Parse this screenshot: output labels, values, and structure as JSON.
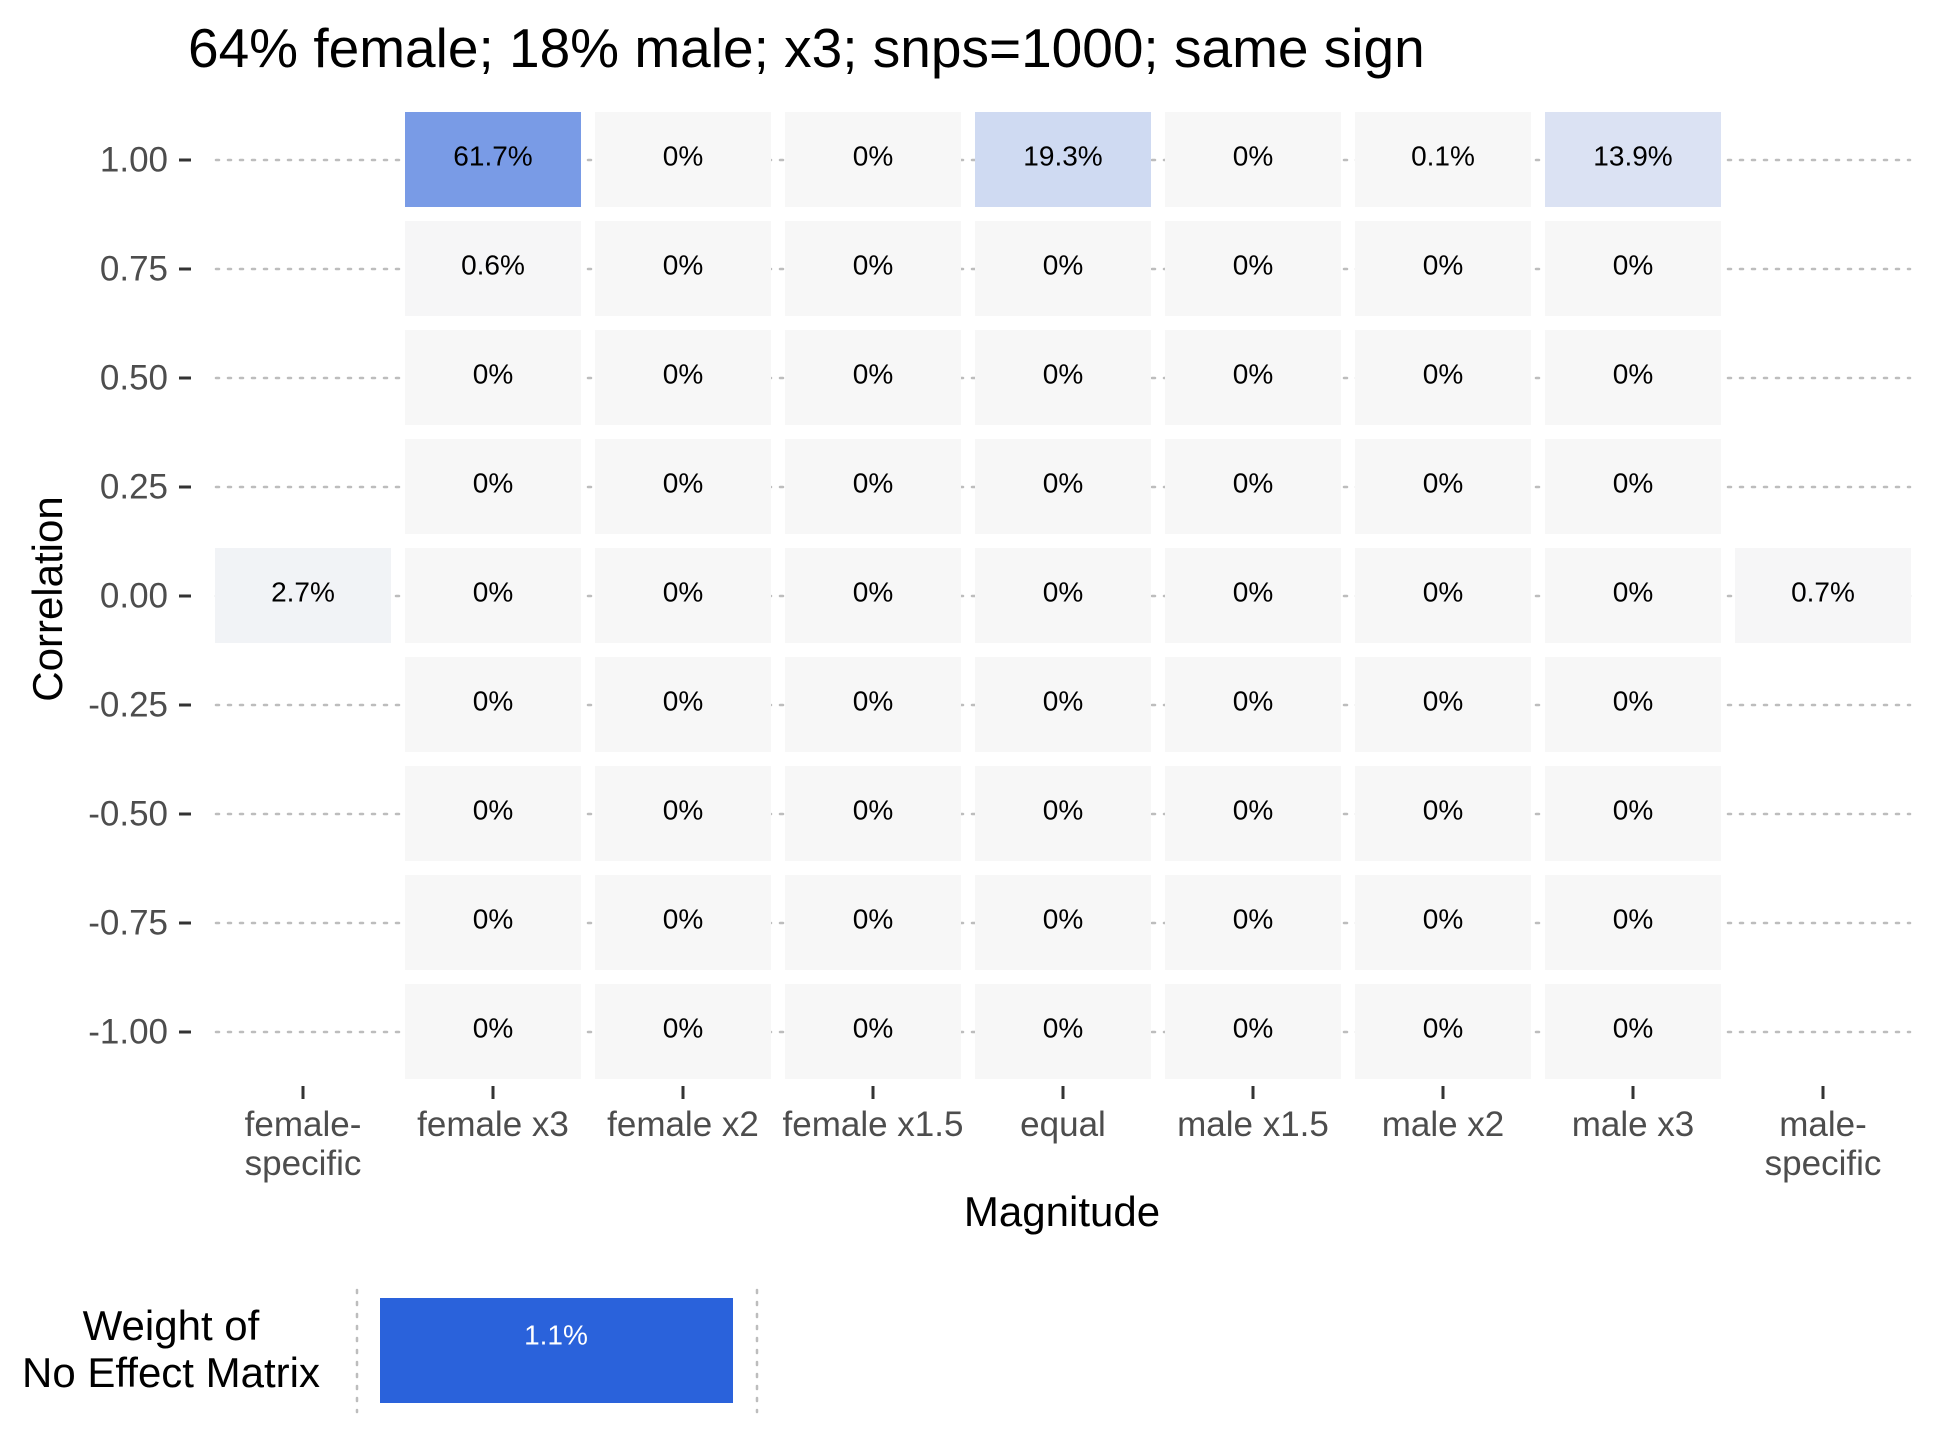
{
  "chart_data": {
    "type": "heatmap",
    "title": "64% female; 18% male; x3; snps=1000; same sign",
    "xlabel": "Magnitude",
    "ylabel": "Correlation",
    "x_categories": [
      "female-\nspecific",
      "female x3",
      "female x2",
      "female x1.5",
      "equal",
      "male x1.5",
      "male x2",
      "male x3",
      "male-\nspecific"
    ],
    "y_categories": [
      "1.00",
      "0.75",
      "0.50",
      "0.25",
      "0.00",
      "-0.25",
      "-0.50",
      "-0.75",
      "-1.00"
    ],
    "cells": [
      {
        "x": "female x3",
        "y": "1.00",
        "value": 61.7,
        "label": "61.7%"
      },
      {
        "x": "female x2",
        "y": "1.00",
        "value": 0,
        "label": "0%"
      },
      {
        "x": "female x1.5",
        "y": "1.00",
        "value": 0,
        "label": "0%"
      },
      {
        "x": "equal",
        "y": "1.00",
        "value": 19.3,
        "label": "19.3%"
      },
      {
        "x": "male x1.5",
        "y": "1.00",
        "value": 0,
        "label": "0%"
      },
      {
        "x": "male x2",
        "y": "1.00",
        "value": 0.1,
        "label": "0.1%"
      },
      {
        "x": "male x3",
        "y": "1.00",
        "value": 13.9,
        "label": "13.9%"
      },
      {
        "x": "female x3",
        "y": "0.75",
        "value": 0.6,
        "label": "0.6%"
      },
      {
        "x": "female x2",
        "y": "0.75",
        "value": 0,
        "label": "0%"
      },
      {
        "x": "female x1.5",
        "y": "0.75",
        "value": 0,
        "label": "0%"
      },
      {
        "x": "equal",
        "y": "0.75",
        "value": 0,
        "label": "0%"
      },
      {
        "x": "male x1.5",
        "y": "0.75",
        "value": 0,
        "label": "0%"
      },
      {
        "x": "male x2",
        "y": "0.75",
        "value": 0,
        "label": "0%"
      },
      {
        "x": "male x3",
        "y": "0.75",
        "value": 0,
        "label": "0%"
      },
      {
        "x": "female x3",
        "y": "0.50",
        "value": 0,
        "label": "0%"
      },
      {
        "x": "female x2",
        "y": "0.50",
        "value": 0,
        "label": "0%"
      },
      {
        "x": "female x1.5",
        "y": "0.50",
        "value": 0,
        "label": "0%"
      },
      {
        "x": "equal",
        "y": "0.50",
        "value": 0,
        "label": "0%"
      },
      {
        "x": "male x1.5",
        "y": "0.50",
        "value": 0,
        "label": "0%"
      },
      {
        "x": "male x2",
        "y": "0.50",
        "value": 0,
        "label": "0%"
      },
      {
        "x": "male x3",
        "y": "0.50",
        "value": 0,
        "label": "0%"
      },
      {
        "x": "female x3",
        "y": "0.25",
        "value": 0,
        "label": "0%"
      },
      {
        "x": "female x2",
        "y": "0.25",
        "value": 0,
        "label": "0%"
      },
      {
        "x": "female x1.5",
        "y": "0.25",
        "value": 0,
        "label": "0%"
      },
      {
        "x": "equal",
        "y": "0.25",
        "value": 0,
        "label": "0%"
      },
      {
        "x": "male x1.5",
        "y": "0.25",
        "value": 0,
        "label": "0%"
      },
      {
        "x": "male x2",
        "y": "0.25",
        "value": 0,
        "label": "0%"
      },
      {
        "x": "male x3",
        "y": "0.25",
        "value": 0,
        "label": "0%"
      },
      {
        "x": "female-\nspecific",
        "y": "0.00",
        "value": 2.7,
        "label": "2.7%"
      },
      {
        "x": "female x3",
        "y": "0.00",
        "value": 0,
        "label": "0%"
      },
      {
        "x": "female x2",
        "y": "0.00",
        "value": 0,
        "label": "0%"
      },
      {
        "x": "female x1.5",
        "y": "0.00",
        "value": 0,
        "label": "0%"
      },
      {
        "x": "equal",
        "y": "0.00",
        "value": 0,
        "label": "0%"
      },
      {
        "x": "male x1.5",
        "y": "0.00",
        "value": 0,
        "label": "0%"
      },
      {
        "x": "male x2",
        "y": "0.00",
        "value": 0,
        "label": "0%"
      },
      {
        "x": "male x3",
        "y": "0.00",
        "value": 0,
        "label": "0%"
      },
      {
        "x": "male-\nspecific",
        "y": "0.00",
        "value": 0.7,
        "label": "0.7%"
      },
      {
        "x": "female x3",
        "y": "-0.25",
        "value": 0,
        "label": "0%"
      },
      {
        "x": "female x2",
        "y": "-0.25",
        "value": 0,
        "label": "0%"
      },
      {
        "x": "female x1.5",
        "y": "-0.25",
        "value": 0,
        "label": "0%"
      },
      {
        "x": "equal",
        "y": "-0.25",
        "value": 0,
        "label": "0%"
      },
      {
        "x": "male x1.5",
        "y": "-0.25",
        "value": 0,
        "label": "0%"
      },
      {
        "x": "male x2",
        "y": "-0.25",
        "value": 0,
        "label": "0%"
      },
      {
        "x": "male x3",
        "y": "-0.25",
        "value": 0,
        "label": "0%"
      },
      {
        "x": "female x3",
        "y": "-0.50",
        "value": 0,
        "label": "0%"
      },
      {
        "x": "female x2",
        "y": "-0.50",
        "value": 0,
        "label": "0%"
      },
      {
        "x": "female x1.5",
        "y": "-0.50",
        "value": 0,
        "label": "0%"
      },
      {
        "x": "equal",
        "y": "-0.50",
        "value": 0,
        "label": "0%"
      },
      {
        "x": "male x1.5",
        "y": "-0.50",
        "value": 0,
        "label": "0%"
      },
      {
        "x": "male x2",
        "y": "-0.50",
        "value": 0,
        "label": "0%"
      },
      {
        "x": "male x3",
        "y": "-0.50",
        "value": 0,
        "label": "0%"
      },
      {
        "x": "female x3",
        "y": "-0.75",
        "value": 0,
        "label": "0%"
      },
      {
        "x": "female x2",
        "y": "-0.75",
        "value": 0,
        "label": "0%"
      },
      {
        "x": "female x1.5",
        "y": "-0.75",
        "value": 0,
        "label": "0%"
      },
      {
        "x": "equal",
        "y": "-0.75",
        "value": 0,
        "label": "0%"
      },
      {
        "x": "male x1.5",
        "y": "-0.75",
        "value": 0,
        "label": "0%"
      },
      {
        "x": "male x2",
        "y": "-0.75",
        "value": 0,
        "label": "0%"
      },
      {
        "x": "male x3",
        "y": "-0.75",
        "value": 0,
        "label": "0%"
      },
      {
        "x": "female x3",
        "y": "-1.00",
        "value": 0,
        "label": "0%"
      },
      {
        "x": "female x2",
        "y": "-1.00",
        "value": 0,
        "label": "0%"
      },
      {
        "x": "female x1.5",
        "y": "-1.00",
        "value": 0,
        "label": "0%"
      },
      {
        "x": "equal",
        "y": "-1.00",
        "value": 0,
        "label": "0%"
      },
      {
        "x": "male x1.5",
        "y": "-1.00",
        "value": 0,
        "label": "0%"
      },
      {
        "x": "male x2",
        "y": "-1.00",
        "value": 0,
        "label": "0%"
      },
      {
        "x": "male x3",
        "y": "-1.00",
        "value": 0,
        "label": "0%"
      }
    ],
    "color_scale": {
      "low": "#f7f7f7",
      "high": "#2a62db",
      "domain": [
        0,
        100
      ]
    },
    "grid": "dotted horizontal",
    "no_effect": {
      "label_lines": [
        "Weight of",
        "No Effect Matrix"
      ],
      "value": 1.1,
      "label": "1.1%",
      "color": "#2a62db"
    }
  }
}
